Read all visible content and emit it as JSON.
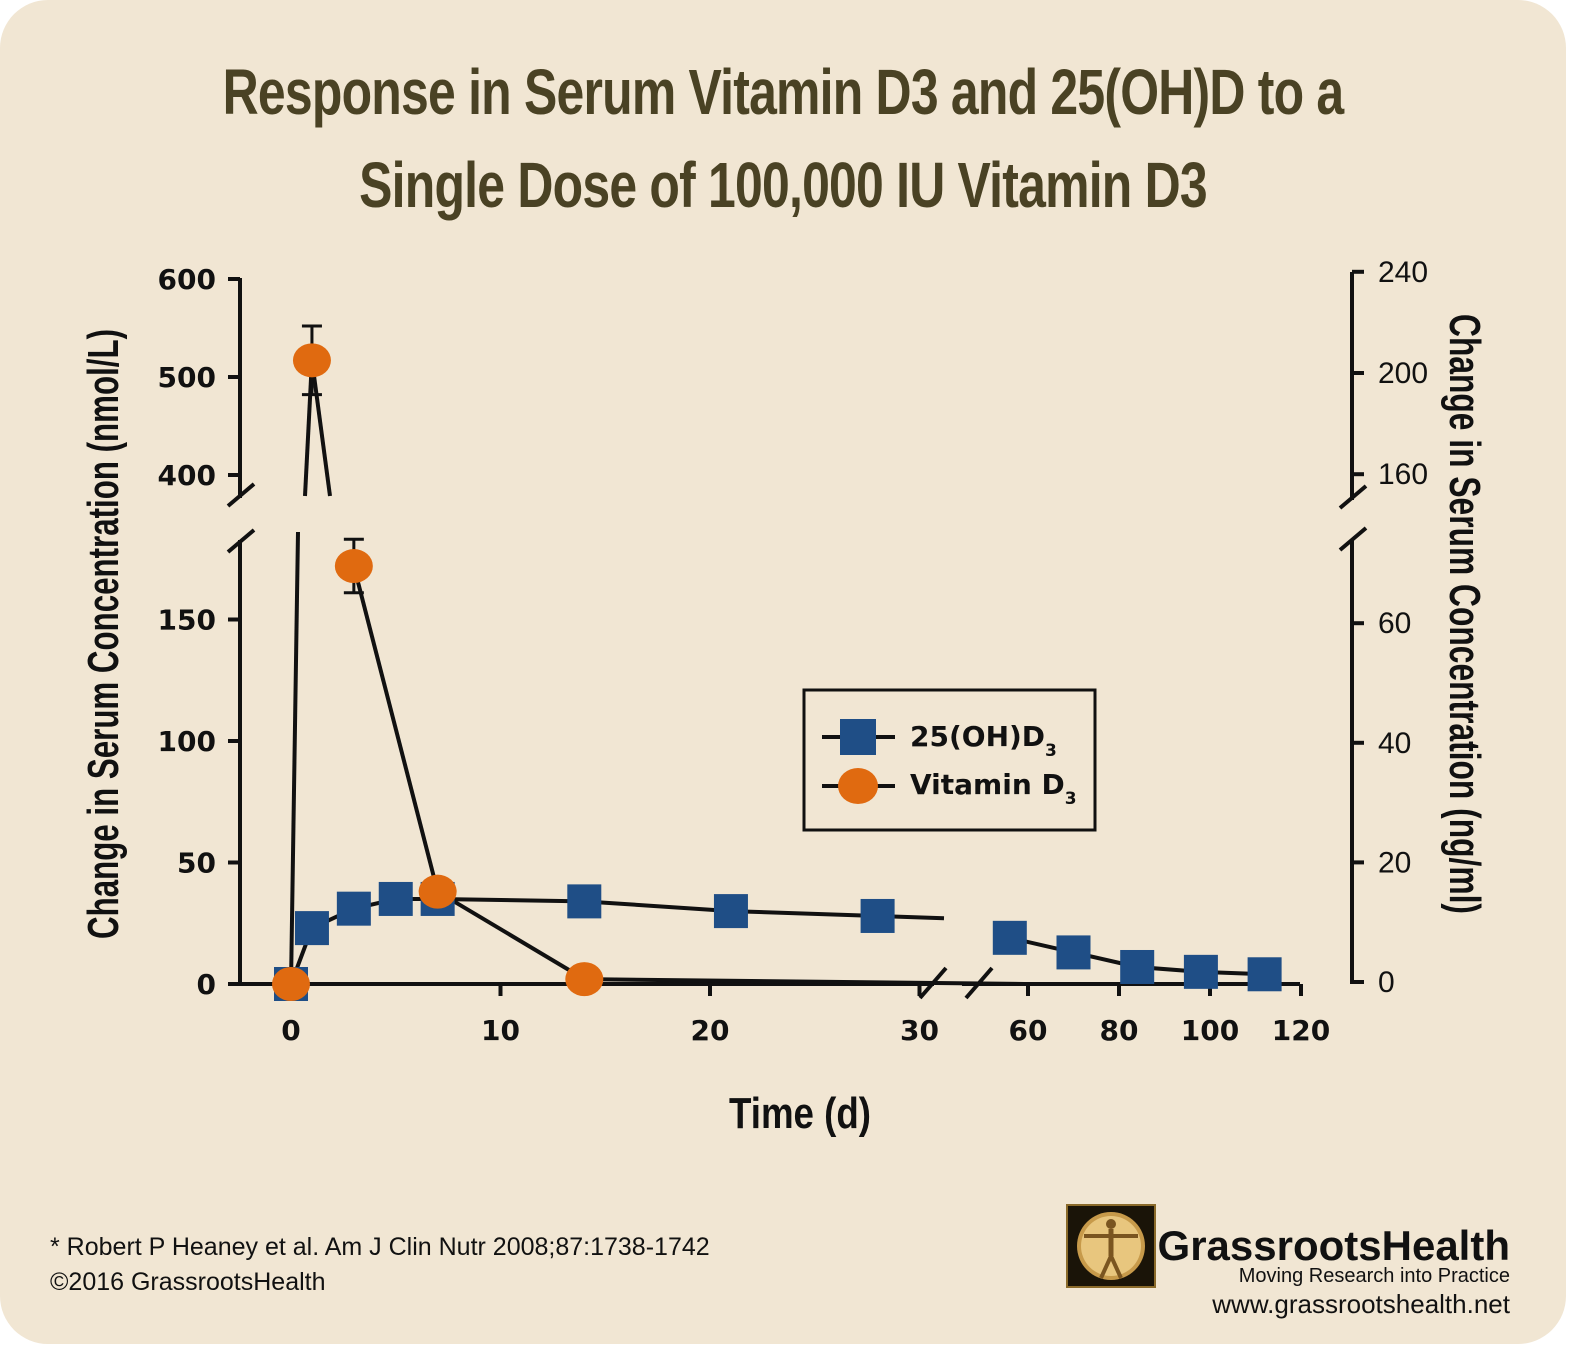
{
  "header": {
    "title_line1": "Response in Serum Vitamin D3 and 25(OH)D to a",
    "title_line2": "Single Dose of 100,000 IU Vitamin D3"
  },
  "chart_data": {
    "type": "line",
    "title": "Response in Serum Vitamin D3 and 25(OH)D to a Single Dose of 100,000 IU Vitamin D3",
    "xlabel": "Time (d)",
    "ylabel_left": "Change in Serum Concentration (nmol/L)",
    "ylabel_right": "Change in Serum Concentration (ng/ml)",
    "x_axis_break": true,
    "x_ticks_left_segment": [
      "0",
      "10",
      "20",
      "30"
    ],
    "x_ticks_right_segment": [
      "60",
      "80",
      "100",
      "120"
    ],
    "y_axis_break": true,
    "y_ticks_left_lower": [
      "0",
      "50",
      "100",
      "150"
    ],
    "y_ticks_left_upper": [
      "400",
      "500",
      "600"
    ],
    "y_ticks_right_lower": [
      "0",
      "20",
      "40",
      "60"
    ],
    "y_ticks_right_upper": [
      "160",
      "200",
      "240"
    ],
    "legend": {
      "position": "center-right",
      "entries": [
        {
          "label": "25(OH)D",
          "subscript": "3",
          "marker": "square",
          "color": "#1f4e86"
        },
        {
          "label": "Vitamin D",
          "subscript": "3",
          "marker": "circle",
          "color": "#e06a10"
        }
      ]
    },
    "series": [
      {
        "name": "25(OH)D3",
        "marker": "square",
        "color": "#1f4e86",
        "x": [
          0,
          1,
          3,
          5,
          7,
          14,
          21,
          28,
          56,
          70,
          84,
          98,
          112
        ],
        "y": [
          0,
          23,
          31,
          35,
          35,
          34,
          30,
          28,
          19,
          13,
          7,
          5,
          4
        ]
      },
      {
        "name": "Vitamin D3",
        "marker": "circle",
        "color": "#e06a10",
        "x": [
          0,
          1,
          3,
          7,
          14
        ],
        "y": [
          0,
          517,
          172,
          38,
          2
        ],
        "error_bars": [
          {
            "x": 1,
            "upper": 552,
            "lower": 482
          },
          {
            "x": 3,
            "upper": 183,
            "lower": 161
          }
        ]
      }
    ]
  },
  "footer": {
    "citation": "* Robert P Heaney et al.  Am J Clin Nutr 2008;87:1738-1742",
    "copyright": "©2016 GrassrootsHealth",
    "brand_name": "GrassrootsHealth",
    "brand_tagline": "Moving Research into Practice",
    "brand_url": "www.grassrootshealth.net"
  },
  "colors": {
    "background": "#f1e6d3",
    "title": "#4a4224",
    "square_series": "#1f4e86",
    "circle_series": "#e06a10"
  }
}
